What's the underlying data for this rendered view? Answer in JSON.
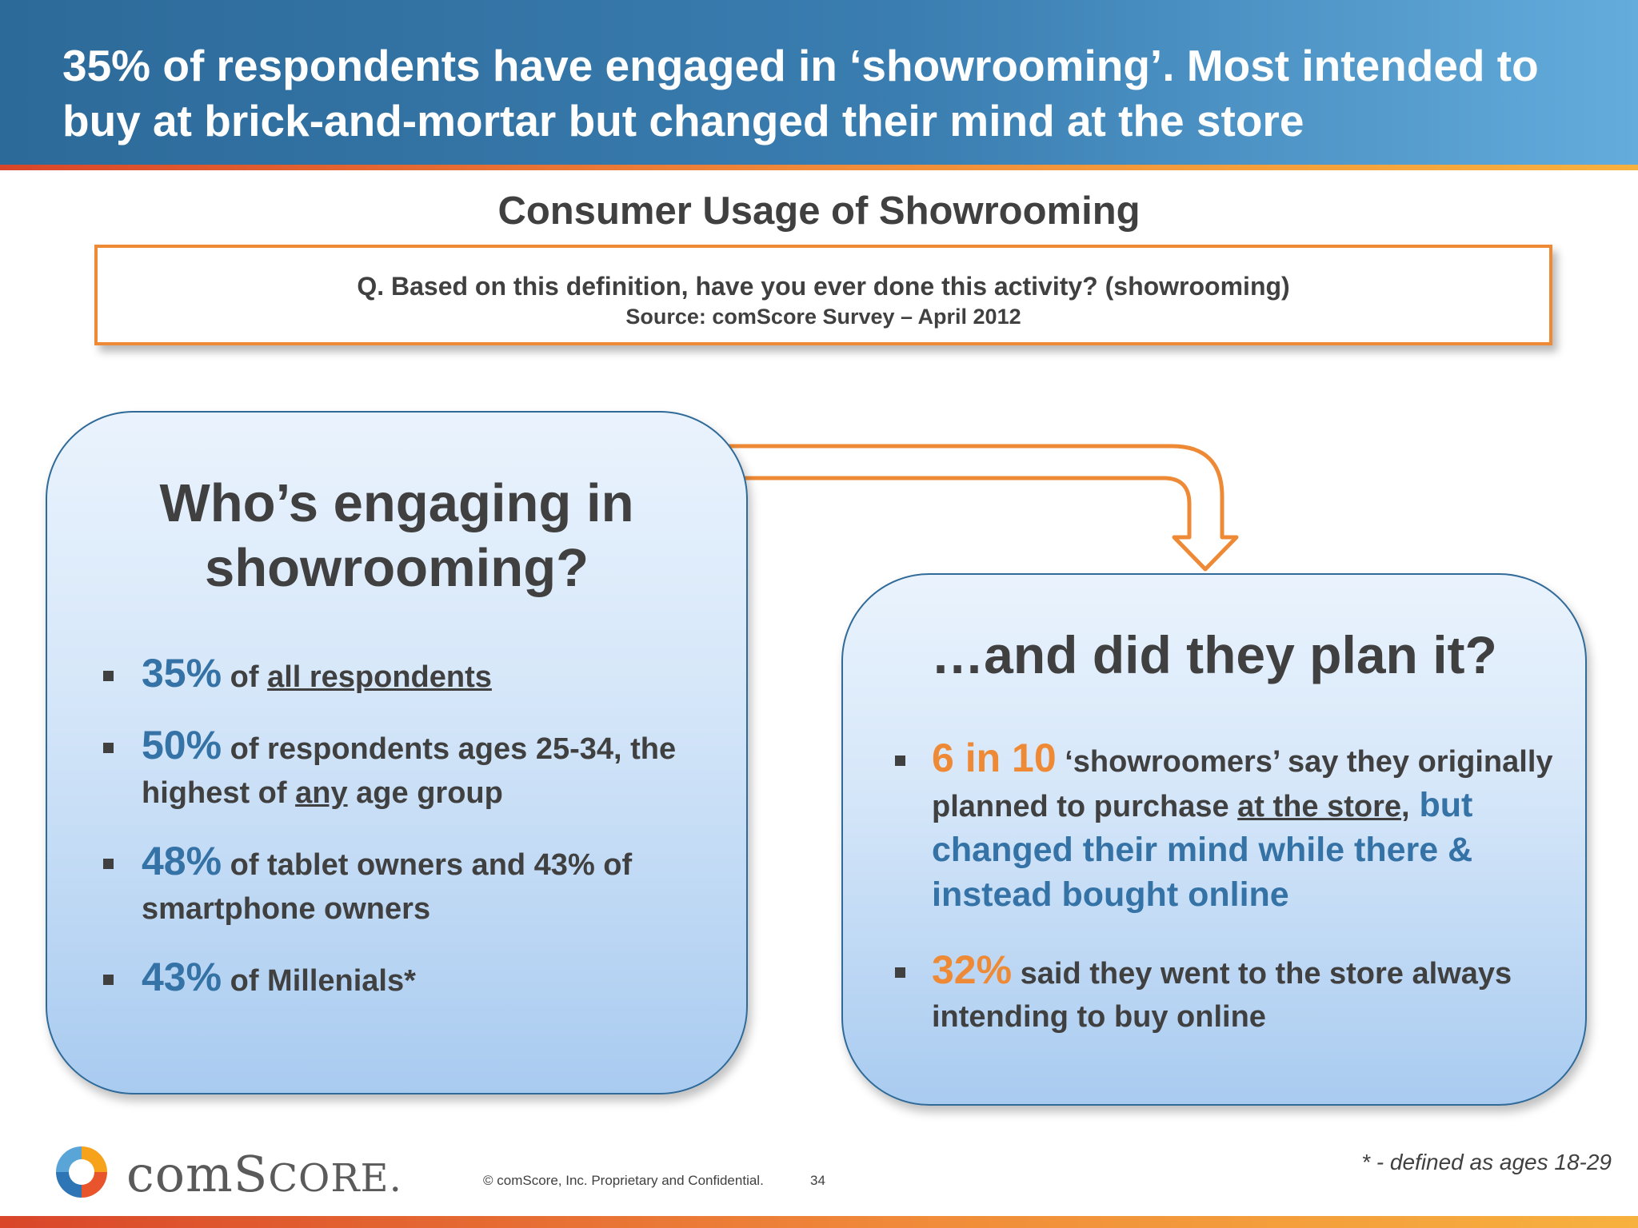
{
  "header": {
    "title": "35% of respondents have engaged in ‘showrooming’. Most intended to buy at brick-and-mortar but changed their mind at the store"
  },
  "section": {
    "title": "Consumer Usage of Showrooming"
  },
  "question_box": {
    "question": "Q. Based on this definition, have you ever done this activity? (showrooming)",
    "source": "Source: comScore Survey – April 2012"
  },
  "left_panel": {
    "title": "Who’s engaging in showrooming?",
    "bullets": [
      {
        "stat": "35%",
        "pre": " of ",
        "underlined": "all respondents",
        "post": ""
      },
      {
        "stat": "50%",
        "pre": " of respondents ages 25-34, the highest of ",
        "underlined": "any",
        "post": " age group"
      },
      {
        "stat": "48%",
        "pre": " of tablet owners and 43% of smartphone owners",
        "underlined": "",
        "post": ""
      },
      {
        "stat": "43%",
        "pre": " of Millenials*",
        "underlined": "",
        "post": ""
      }
    ]
  },
  "right_panel": {
    "title": "…and did they plan it?",
    "bullets": [
      {
        "stat": "6 in 10",
        "pre": " ‘showroomers’ say they originally planned to purchase ",
        "underlined": "at the store",
        "post": ",",
        "highlight": " but changed their mind while there & instead bought online"
      },
      {
        "stat": "32%",
        "pre": " said they went to the store always intending to buy online"
      }
    ]
  },
  "footer": {
    "footnote": "* - defined as ages 18-29",
    "copyright": "© comScore, Inc.  Proprietary and Confidential.",
    "page_number": "34",
    "logo_text_lower": "com",
    "logo_text_upper": "S",
    "logo_text_sc": "CORE",
    "logo_suffix": "."
  },
  "colors": {
    "accent_blue": "#3572a6",
    "accent_orange": "#ee8a36",
    "header_blue": "#2c6a99",
    "text_gray": "#404040"
  }
}
